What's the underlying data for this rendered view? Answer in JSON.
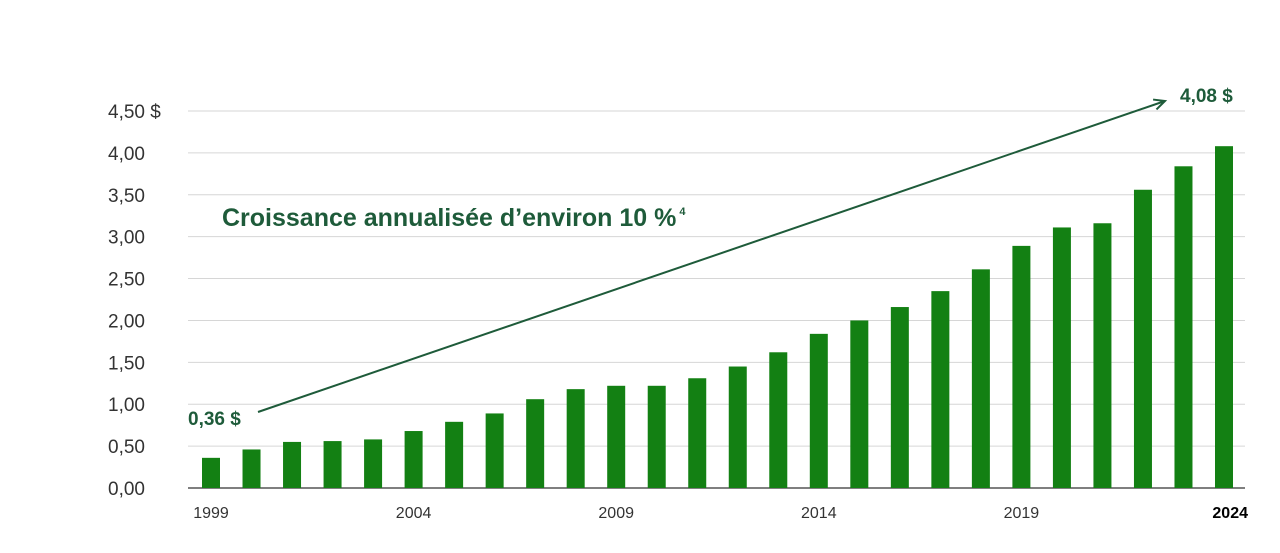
{
  "chart_data": {
    "type": "bar",
    "categories": [
      "1999",
      "2000",
      "2001",
      "2002",
      "2003",
      "2004",
      "2005",
      "2006",
      "2007",
      "2008",
      "2009",
      "2010",
      "2011",
      "2012",
      "2013",
      "2014",
      "2015",
      "2016",
      "2017",
      "2018",
      "2019",
      "2020",
      "2021",
      "2022",
      "2023",
      "2024"
    ],
    "values": [
      0.36,
      0.46,
      0.55,
      0.56,
      0.58,
      0.68,
      0.79,
      0.89,
      1.06,
      1.18,
      1.22,
      1.22,
      1.31,
      1.45,
      1.62,
      1.84,
      2.0,
      2.16,
      2.35,
      2.61,
      2.89,
      3.11,
      3.16,
      3.56,
      3.84,
      4.08
    ],
    "y_ticks": [
      "0,00",
      "0,50",
      "1,00",
      "1,50",
      "2,00",
      "2,50",
      "3,00",
      "3,50",
      "4,00",
      "4,50 $"
    ],
    "x_tick_labels": [
      "1999",
      "2004",
      "2009",
      "2014",
      "2019",
      "2024"
    ],
    "ylim": [
      0,
      4.5
    ],
    "grid": true,
    "bar_color": "#138013",
    "annotation_color": "#1e5b3a",
    "annotations": {
      "growth_text": "Croissance annualisée d’environ 10 %",
      "growth_superscript": "4",
      "start_label": "0,36 $",
      "end_label": "4,08 $"
    }
  }
}
